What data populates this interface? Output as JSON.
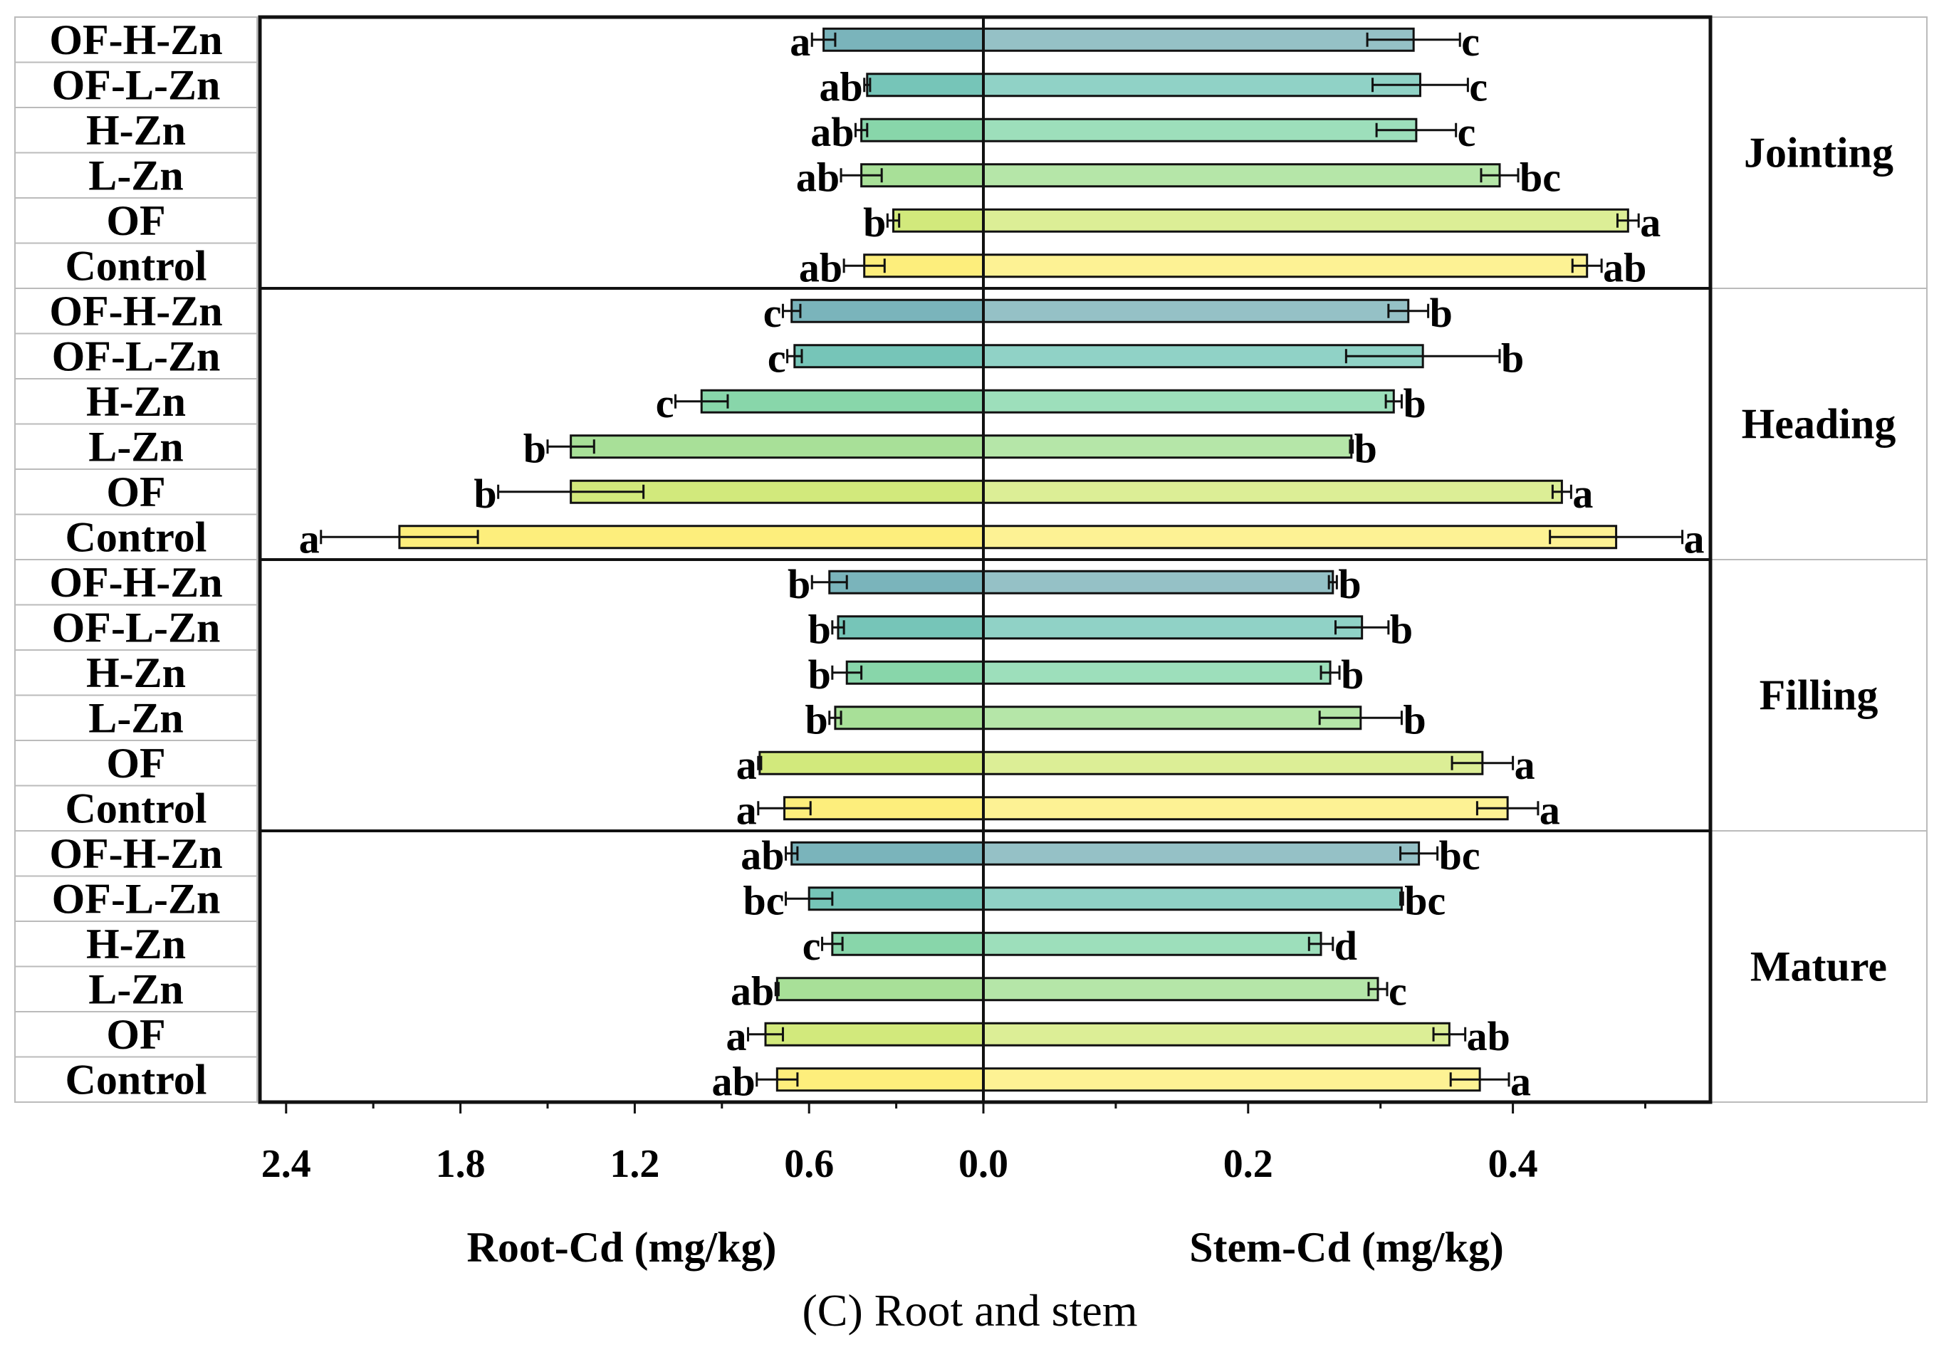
{
  "chart_data": {
    "type": "bar",
    "orientation": "horizontal-butterfly",
    "caption_letter": "C",
    "caption_text": "Root and stem",
    "left_axis": {
      "label": "Root-Cd (mg/kg)",
      "range": [
        0,
        2.4
      ],
      "ticks": [
        "2.4",
        "1.8",
        "1.2",
        "0.6",
        "0.0"
      ],
      "tick_values": [
        2.4,
        1.8,
        1.2,
        0.6,
        0.0
      ],
      "minor": [
        2.1,
        1.5,
        0.9,
        0.3
      ]
    },
    "right_axis": {
      "label": "Stem-Cd (mg/kg)",
      "range": [
        0,
        0.55
      ],
      "ticks": [
        "0.2",
        "0.4"
      ],
      "tick_values": [
        0.2,
        0.4
      ],
      "minor": [
        0.1,
        0.3,
        0.5
      ]
    },
    "treatments": [
      "OF-H-Zn",
      "OF-L-Zn",
      "H-Zn",
      "L-Zn",
      "OF",
      "Control"
    ],
    "root_colors": [
      "#7ab4bb",
      "#76c5b8",
      "#88d6aa",
      "#a8e098",
      "#d2e97c",
      "#fdee7c"
    ],
    "stem_colors": [
      "#95c1c6",
      "#90d2c6",
      "#9ddfbb",
      "#b5e6a8",
      "#dcee96",
      "#fdf294"
    ],
    "stages": [
      {
        "name": "Jointing",
        "root": [
          0.55,
          0.4,
          0.42,
          0.42,
          0.31,
          0.41
        ],
        "root_err": [
          0.04,
          0.01,
          0.02,
          0.07,
          0.02,
          0.07
        ],
        "root_sig": [
          "a",
          "ab",
          "ab",
          "ab",
          "b",
          "ab"
        ],
        "stem": [
          0.325,
          0.33,
          0.327,
          0.39,
          0.487,
          0.456
        ],
        "stem_err": [
          0.035,
          0.036,
          0.03,
          0.014,
          0.008,
          0.011
        ],
        "stem_sig": [
          "c",
          "c",
          "c",
          "bc",
          "a",
          "ab"
        ]
      },
      {
        "name": "Heading",
        "root": [
          0.66,
          0.65,
          0.97,
          1.42,
          1.42,
          2.01
        ],
        "root_err": [
          0.03,
          0.025,
          0.09,
          0.08,
          0.25,
          0.27
        ],
        "root_sig": [
          "c",
          "c",
          "c",
          "b",
          "b",
          "a"
        ],
        "stem": [
          0.321,
          0.332,
          0.31,
          0.278,
          0.437,
          0.478
        ],
        "stem_err": [
          0.015,
          0.058,
          0.006,
          0.001,
          0.007,
          0.05
        ],
        "stem_sig": [
          "b",
          "b",
          "b",
          "b",
          "a",
          "a"
        ]
      },
      {
        "name": "Filling",
        "root": [
          0.53,
          0.5,
          0.47,
          0.51,
          0.77,
          0.685
        ],
        "root_err": [
          0.06,
          0.02,
          0.05,
          0.02,
          0.005,
          0.09
        ],
        "root_sig": [
          "b",
          "b",
          "b",
          "b",
          "a",
          "a"
        ],
        "stem": [
          0.264,
          0.286,
          0.262,
          0.285,
          0.377,
          0.396
        ],
        "stem_err": [
          0.003,
          0.02,
          0.007,
          0.031,
          0.023,
          0.023
        ],
        "stem_sig": [
          "b",
          "b",
          "b",
          "b",
          "a",
          "a"
        ]
      },
      {
        "name": "Mature",
        "root": [
          0.66,
          0.6,
          0.52,
          0.71,
          0.75,
          0.71
        ],
        "root_err": [
          0.02,
          0.08,
          0.035,
          0.005,
          0.06,
          0.07
        ],
        "root_sig": [
          "ab",
          "bc",
          "c",
          "ab",
          "a",
          "ab"
        ],
        "stem": [
          0.329,
          0.316,
          0.255,
          0.298,
          0.352,
          0.375
        ],
        "stem_err": [
          0.014,
          0.001,
          0.009,
          0.007,
          0.012,
          0.022
        ],
        "stem_sig": [
          "bc",
          "bc",
          "d",
          "c",
          "ab",
          "a"
        ]
      }
    ]
  }
}
